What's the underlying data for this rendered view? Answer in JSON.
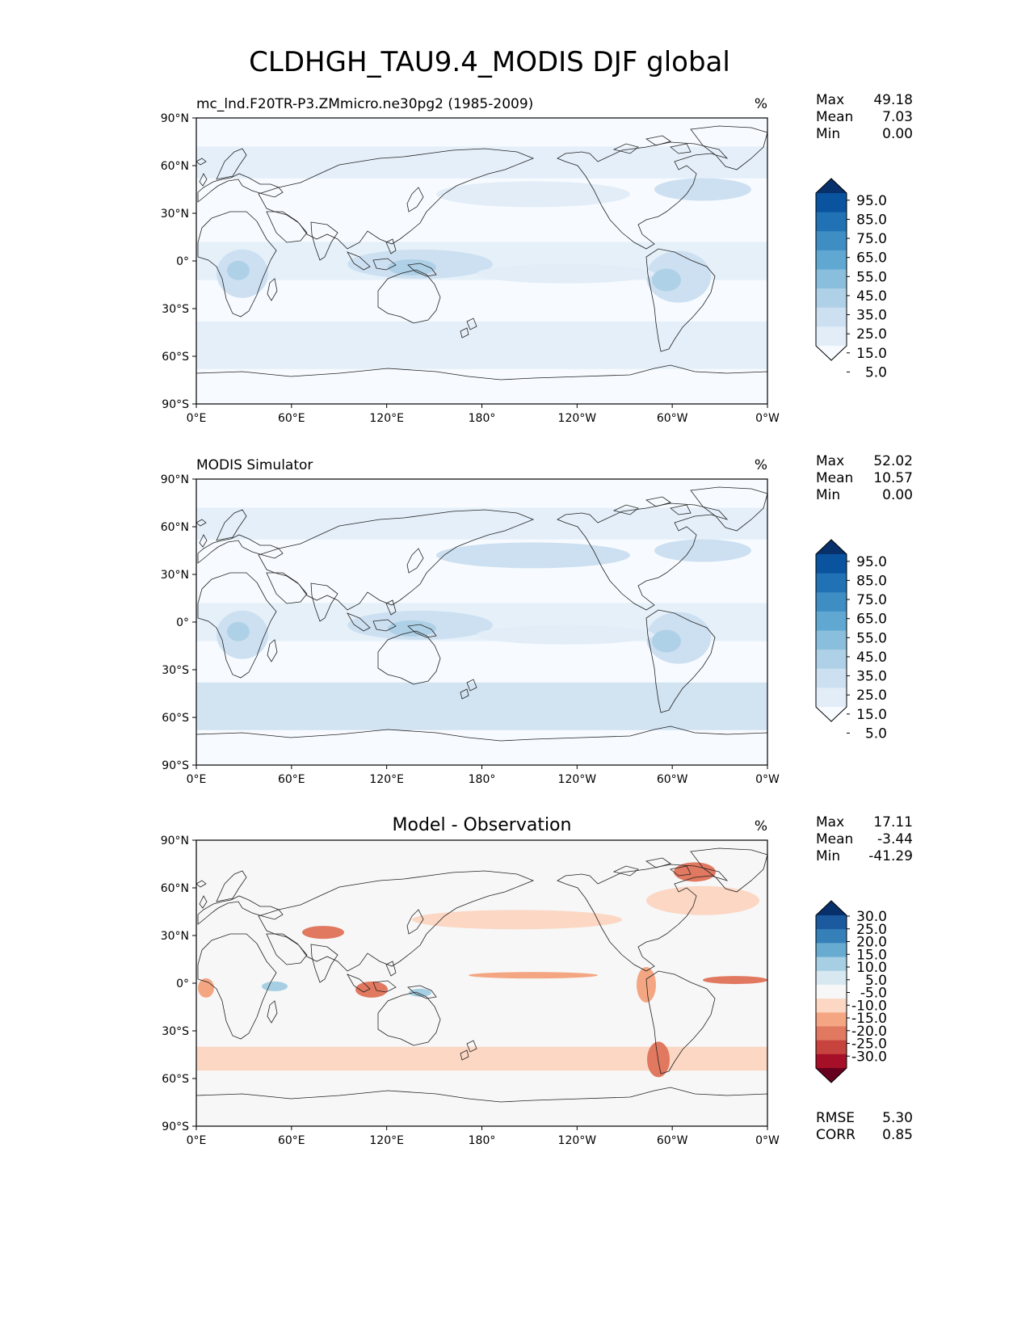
{
  "figure": {
    "title": "CLDHGH_TAU9.4_MODIS DJF global"
  },
  "axes": {
    "lat_ticks": [
      "90°N",
      "60°N",
      "30°N",
      "0°",
      "30°S",
      "60°S",
      "90°S"
    ],
    "lon_ticks": [
      "0°E",
      "60°E",
      "120°E",
      "180°",
      "120°W",
      "60°W",
      "0°W"
    ]
  },
  "colors": {
    "seq_levels": [
      "#f7fbff",
      "#e2edf8",
      "#cde0f1",
      "#afd1e7",
      "#89bfdd",
      "#60a7d2",
      "#3e8ec4",
      "#2171b5",
      "#0a539e",
      "#08306b"
    ],
    "diff_levels": [
      "#67001f",
      "#a50f27",
      "#c7433e",
      "#e17860",
      "#f4a683",
      "#fbd7c4",
      "#f7f7f7",
      "#d7e8f1",
      "#a6cfe4",
      "#68abd0",
      "#3680b9",
      "#1b5a9f",
      "#08306b"
    ]
  },
  "panels": [
    {
      "left_title": "mc_lnd.F20TR-P3.ZMmicro.ne30pg2 (1985-2009)",
      "center_title": "",
      "units": "%",
      "stats": [
        {
          "label": "Max",
          "value": "49.18"
        },
        {
          "label": "Mean",
          "value": "7.03"
        },
        {
          "label": "Min",
          "value": "0.00"
        }
      ],
      "colorbar_labels": [
        "95.0",
        "85.0",
        "75.0",
        "65.0",
        "55.0",
        "45.0",
        "35.0",
        "25.0",
        "15.0",
        "5.0"
      ],
      "extra_stats": []
    },
    {
      "left_title": "MODIS Simulator",
      "center_title": "",
      "units": "%",
      "stats": [
        {
          "label": "Max",
          "value": "52.02"
        },
        {
          "label": "Mean",
          "value": "10.57"
        },
        {
          "label": "Min",
          "value": "0.00"
        }
      ],
      "colorbar_labels": [
        "95.0",
        "85.0",
        "75.0",
        "65.0",
        "55.0",
        "45.0",
        "35.0",
        "25.0",
        "15.0",
        "5.0"
      ],
      "extra_stats": []
    },
    {
      "left_title": "",
      "center_title": "Model - Observation",
      "units": "%",
      "stats": [
        {
          "label": "Max",
          "value": "17.11"
        },
        {
          "label": "Mean",
          "value": "-3.44"
        },
        {
          "label": "Min",
          "value": "-41.29"
        }
      ],
      "colorbar_labels": [
        "30.0",
        "25.0",
        "20.0",
        "15.0",
        "10.0",
        "5.0",
        "-5.0",
        "-10.0",
        "-15.0",
        "-20.0",
        "-25.0",
        "-30.0"
      ],
      "extra_stats": [
        {
          "label": "RMSE",
          "value": "5.30"
        },
        {
          "label": "CORR",
          "value": "0.85"
        }
      ]
    }
  ]
}
